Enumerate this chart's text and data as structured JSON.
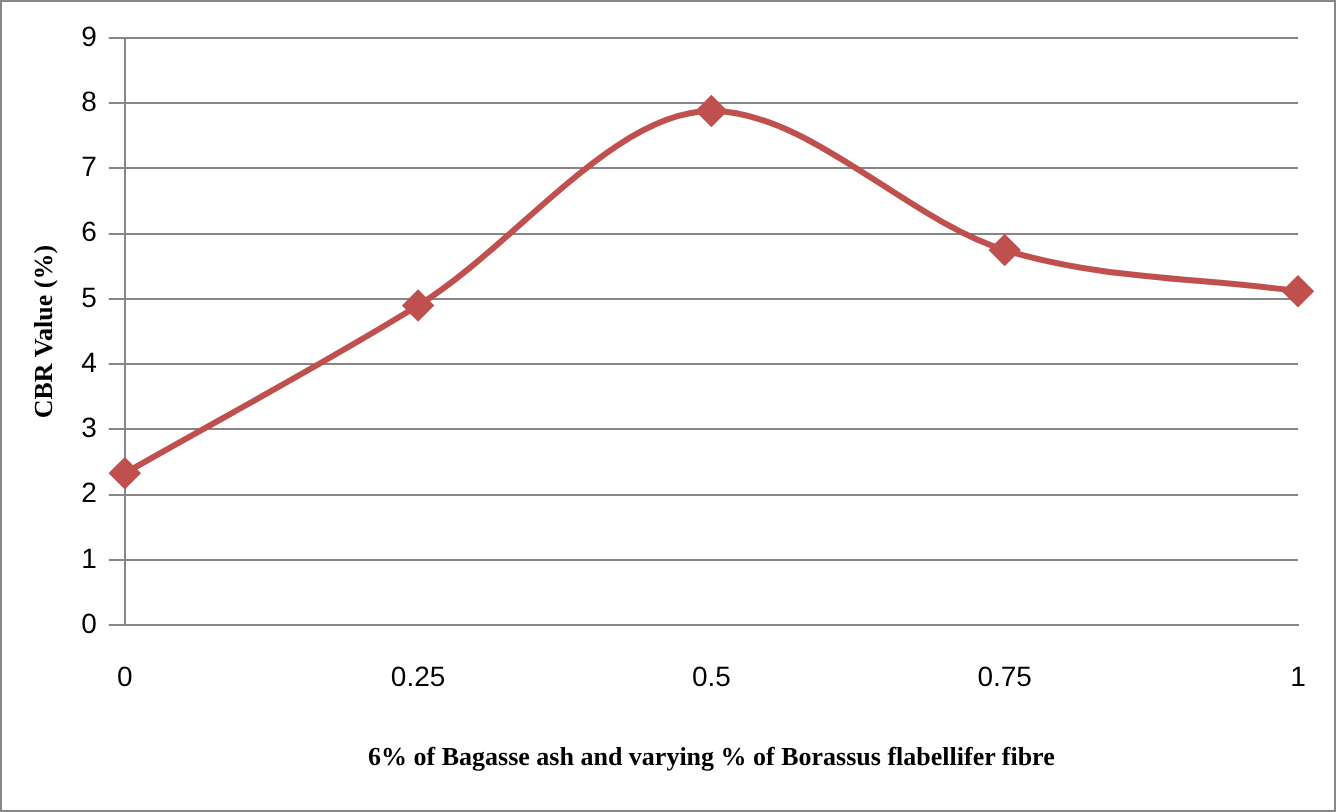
{
  "chart_data": {
    "type": "line",
    "xlabel": "6% of Bagasse ash and varying % of Borassus flabellifer fibre",
    "ylabel": "CBR Value (%)",
    "categories": [
      "0",
      "0.25",
      "0.5",
      "0.75",
      "1"
    ],
    "series": [
      {
        "color": "#c0504d",
        "values": [
          2.33,
          4.9,
          7.88,
          5.75,
          5.12
        ]
      }
    ],
    "ylim": [
      0,
      9
    ],
    "yticks": [
      0,
      1,
      2,
      3,
      4,
      5,
      6,
      7,
      8,
      9
    ],
    "grid": "y",
    "legend": false,
    "marker": "diamond",
    "line_style": "solid"
  }
}
